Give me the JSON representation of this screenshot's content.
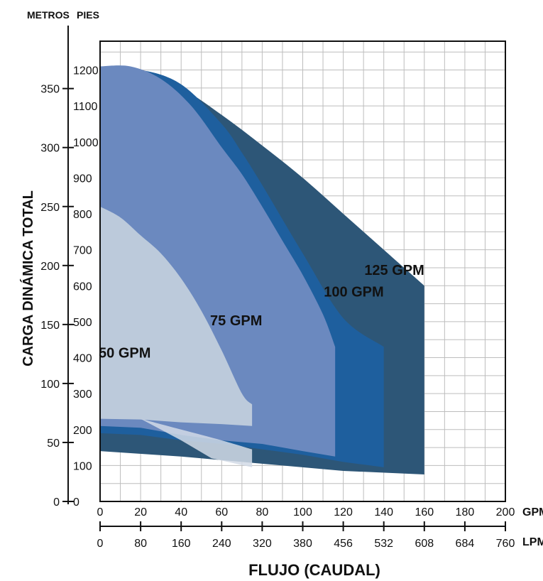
{
  "chart_data": {
    "type": "area",
    "ylabel": "CARGA DINÁMICA TOTAL",
    "xlabel": "FLUJO (CAUDAL)",
    "y_unit_metros": "METROS",
    "y_unit_pies": "PIES",
    "x_unit_gpm": "GPM",
    "x_unit_lpm": "LPM",
    "x_range_gpm": [
      0,
      200
    ],
    "y_range_pies": [
      0,
      1200
    ],
    "grid": true,
    "gpm_ticks": [
      "0",
      "20",
      "40",
      "60",
      "80",
      "100",
      "120",
      "140",
      "160",
      "180",
      "200"
    ],
    "lpm_ticks": [
      "0",
      "80",
      "160",
      "240",
      "320",
      "380",
      "456",
      "532",
      "608",
      "684",
      "760"
    ],
    "metros_ticks": [
      {
        "label": "0",
        "value": 0
      },
      {
        "label": "50",
        "value": 50
      },
      {
        "label": "100",
        "value": 100
      },
      {
        "label": "150",
        "value": 150
      },
      {
        "label": "200",
        "value": 200
      },
      {
        "label": "250",
        "value": 250
      },
      {
        "label": "300",
        "value": 300
      },
      {
        "label": "350",
        "value": 350
      }
    ],
    "pies_ticks": [
      "0",
      "100",
      "200",
      "300",
      "400",
      "500",
      "600",
      "700",
      "800",
      "900",
      "1000",
      "1100",
      "1200"
    ],
    "series": [
      {
        "name": "125 GPM",
        "color": "#2d5677",
        "upper": [
          [
            0,
            1200
          ],
          [
            20,
            1195
          ],
          [
            40,
            1150
          ],
          [
            60,
            1075
          ],
          [
            80,
            990
          ],
          [
            100,
            900
          ],
          [
            120,
            800
          ],
          [
            140,
            700
          ],
          [
            160,
            600
          ]
        ],
        "lower": [
          [
            0,
            140
          ],
          [
            40,
            125
          ],
          [
            80,
            105
          ],
          [
            120,
            85
          ],
          [
            160,
            75
          ]
        ]
      },
      {
        "name": "100 GPM",
        "color": "#1e5f9e",
        "upper": [
          [
            0,
            1200
          ],
          [
            20,
            1200
          ],
          [
            40,
            1160
          ],
          [
            60,
            1050
          ],
          [
            70,
            970
          ],
          [
            80,
            880
          ],
          [
            100,
            690
          ],
          [
            120,
            510
          ],
          [
            140,
            430
          ]
        ],
        "lower": [
          [
            0,
            190
          ],
          [
            20,
            185
          ],
          [
            40,
            170
          ],
          [
            60,
            160
          ],
          [
            80,
            145
          ],
          [
            100,
            130
          ],
          [
            120,
            110
          ],
          [
            140,
            95
          ]
        ]
      },
      {
        "name": "75 GPM",
        "color": "#6b89bf",
        "upper": [
          [
            0,
            1210
          ],
          [
            15,
            1210
          ],
          [
            30,
            1175
          ],
          [
            45,
            1100
          ],
          [
            60,
            985
          ],
          [
            70,
            910
          ],
          [
            80,
            820
          ],
          [
            90,
            725
          ],
          [
            100,
            630
          ],
          [
            110,
            520
          ],
          [
            116,
            430
          ]
        ],
        "lower": [
          [
            0,
            210
          ],
          [
            20,
            205
          ],
          [
            40,
            185
          ],
          [
            60,
            170
          ],
          [
            80,
            160
          ],
          [
            100,
            140
          ],
          [
            116,
            125
          ]
        ]
      },
      {
        "name": "50 GPM",
        "color": "#bccadb",
        "upper": [
          [
            0,
            820
          ],
          [
            10,
            790
          ],
          [
            20,
            740
          ],
          [
            30,
            690
          ],
          [
            40,
            620
          ],
          [
            50,
            530
          ],
          [
            60,
            420
          ],
          [
            70,
            300
          ],
          [
            75,
            270
          ]
        ],
        "lower": [
          [
            0,
            230
          ],
          [
            20,
            228
          ],
          [
            40,
            220
          ],
          [
            60,
            215
          ],
          [
            75,
            210
          ]
        ]
      },
      {
        "name": "",
        "color": "#d2dbe6",
        "upper": [
          [
            20,
            230
          ],
          [
            40,
            200
          ],
          [
            60,
            170
          ],
          [
            75,
            145
          ]
        ],
        "lower": [
          [
            20,
            230
          ],
          [
            40,
            170
          ],
          [
            55,
            120
          ],
          [
            75,
            95
          ]
        ]
      }
    ]
  }
}
